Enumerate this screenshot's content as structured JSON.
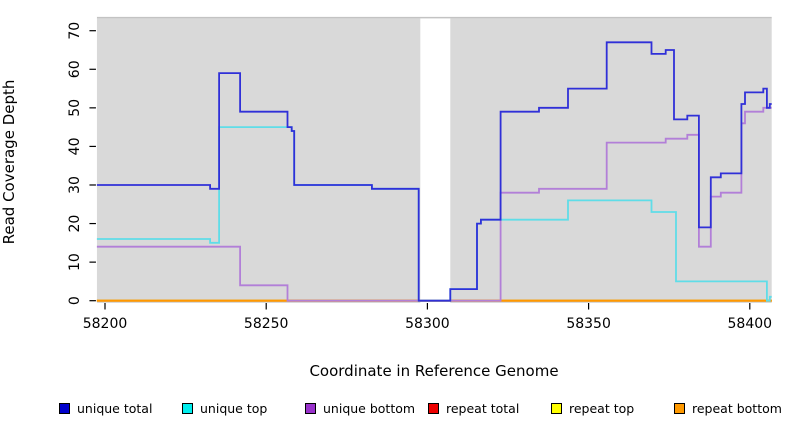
{
  "chart_data": {
    "type": "line",
    "subtype": "step-coverage",
    "title": "",
    "xlabel": "Coordinate in Reference Genome",
    "ylabel": "Read Coverage Depth",
    "xlim": [
      58197.5,
      58406.8
    ],
    "ylim": [
      0,
      71
    ],
    "x_ticks": [
      58200,
      58250,
      58300,
      58350,
      58400
    ],
    "y_ticks": [
      0,
      10,
      20,
      30,
      40,
      50,
      60,
      70
    ],
    "grid": "off",
    "legend_position": "bottom",
    "panel_background": "#d9d9d9",
    "panel_top_edge_color": "#c3c3c3",
    "gap_region_x": [
      58297.8,
      58307.1
    ],
    "series": [
      {
        "name": "repeat total",
        "color": "#cc0000",
        "steps": [
          [
            58197.5,
            0
          ]
        ]
      },
      {
        "name": "repeat top",
        "color": "#ffee00",
        "steps": [
          [
            58197.5,
            0
          ]
        ]
      },
      {
        "name": "repeat bottom",
        "color": "#ff9800",
        "steps": [
          [
            58197.5,
            0
          ]
        ]
      },
      {
        "name": "unique bottom",
        "color": "#b27fd8",
        "steps": [
          [
            58197.5,
            14
          ],
          [
            58241.9,
            4
          ],
          [
            58256.6,
            0
          ],
          [
            58322.7,
            28
          ],
          [
            58334.6,
            29
          ],
          [
            58355.6,
            41
          ],
          [
            58373.9,
            42
          ],
          [
            58380.6,
            43
          ],
          [
            58384.2,
            14
          ],
          [
            58387.9,
            27
          ],
          [
            58391,
            28
          ],
          [
            58397.4,
            46
          ],
          [
            58398.5,
            49
          ],
          [
            58404.2,
            50
          ]
        ]
      },
      {
        "name": "unique top",
        "color": "#5fdde8",
        "steps": [
          [
            58197.5,
            16
          ],
          [
            58232.6,
            15
          ],
          [
            58235.4,
            45
          ],
          [
            58257.9,
            44
          ],
          [
            58258.7,
            30
          ],
          [
            58282.8,
            29
          ],
          [
            58297.3,
            0
          ],
          [
            58307.1,
            3
          ],
          [
            58315.4,
            20
          ],
          [
            58316.6,
            21
          ],
          [
            58343.6,
            26
          ],
          [
            58369.5,
            23
          ],
          [
            58377.1,
            5
          ],
          [
            58405.3,
            0
          ],
          [
            58406.2,
            1
          ]
        ]
      },
      {
        "name": "unique total",
        "color": "#3030d8",
        "steps": [
          [
            58197.5,
            30
          ],
          [
            58232.6,
            29
          ],
          [
            58235.4,
            59
          ],
          [
            58241.9,
            49
          ],
          [
            58256.6,
            45
          ],
          [
            58257.9,
            44
          ],
          [
            58258.7,
            30
          ],
          [
            58282.8,
            29
          ],
          [
            58297.3,
            0
          ],
          [
            58307.1,
            3
          ],
          [
            58315.4,
            20
          ],
          [
            58316.6,
            21
          ],
          [
            58322.7,
            49
          ],
          [
            58334.6,
            50
          ],
          [
            58343.6,
            55
          ],
          [
            58355.6,
            67
          ],
          [
            58369.5,
            64
          ],
          [
            58373.9,
            65
          ],
          [
            58376.5,
            47
          ],
          [
            58380.6,
            48
          ],
          [
            58384.2,
            19
          ],
          [
            58387.9,
            32
          ],
          [
            58391,
            33
          ],
          [
            58397.4,
            51
          ],
          [
            58398.5,
            54
          ],
          [
            58404.2,
            55
          ],
          [
            58405.3,
            50
          ],
          [
            58406.2,
            51
          ]
        ]
      }
    ]
  },
  "legend": {
    "items": [
      {
        "label": "unique total",
        "swatch_color": "#0000cc",
        "x": 59
      },
      {
        "label": "unique top",
        "swatch_color": "#00eeee",
        "x": 182
      },
      {
        "label": "unique bottom",
        "swatch_color": "#9932cc",
        "x": 305
      },
      {
        "label": "repeat total",
        "swatch_color": "#ee0000",
        "x": 428
      },
      {
        "label": "repeat top",
        "swatch_color": "#ffff00",
        "x": 551
      },
      {
        "label": "repeat bottom",
        "swatch_color": "#ff9900",
        "x": 674
      }
    ]
  },
  "axes": {
    "x_label": "Coordinate in Reference Genome",
    "y_label": "Read Coverage Depth"
  }
}
